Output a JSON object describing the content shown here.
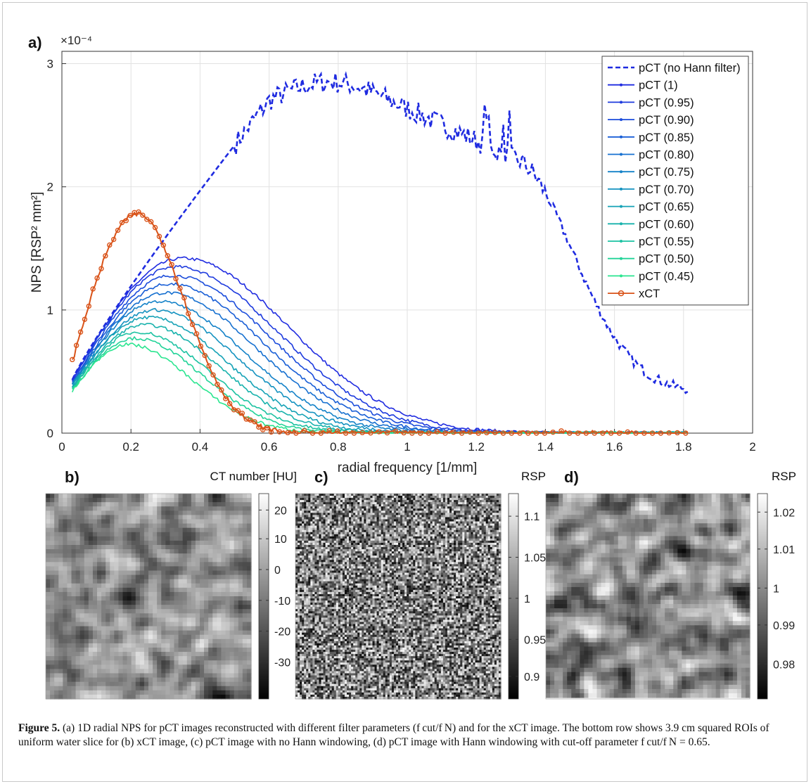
{
  "chart_data": {
    "type": "line",
    "panel_label": "a)",
    "xlabel": "radial frequency [1/mm]",
    "ylabel": "NPS [RSP² mm²]",
    "y_multiplier": "×10⁻⁴",
    "xlim": [
      0,
      2
    ],
    "ylim": [
      0,
      3.1
    ],
    "xticks": [
      "0",
      "0.2",
      "0.4",
      "0.6",
      "0.8",
      "1",
      "1.2",
      "1.4",
      "1.6",
      "1.8",
      "2"
    ],
    "yticks": [
      "0",
      "1",
      "2",
      "3"
    ],
    "grid": true,
    "legend_position": "top-right",
    "series": [
      {
        "name": "pCT (no Hann filter)",
        "color": "#1f2be0",
        "style": "dash",
        "peak_x": 0.75,
        "peak": 2.85,
        "noise": true
      },
      {
        "name": "pCT (1)",
        "color": "#1f2be0",
        "style": "line",
        "peak_x": 0.35,
        "peak": 1.42,
        "y0": 0.43,
        "cutoff": 1.0
      },
      {
        "name": "pCT (0.95)",
        "color": "#1d3ade",
        "style": "line",
        "peak_x": 0.33,
        "peak": 1.35,
        "y0": 0.42,
        "cutoff": 0.95
      },
      {
        "name": "pCT (0.90)",
        "color": "#1b4cdb",
        "style": "line",
        "peak_x": 0.32,
        "peak": 1.28,
        "y0": 0.41,
        "cutoff": 0.9
      },
      {
        "name": "pCT (0.85)",
        "color": "#185ed6",
        "style": "line",
        "peak_x": 0.31,
        "peak": 1.21,
        "y0": 0.4,
        "cutoff": 0.85
      },
      {
        "name": "pCT (0.80)",
        "color": "#1670d0",
        "style": "line",
        "peak_x": 0.3,
        "peak": 1.14,
        "y0": 0.4,
        "cutoff": 0.8
      },
      {
        "name": "pCT (0.75)",
        "color": "#1482c8",
        "style": "line",
        "peak_x": 0.28,
        "peak": 1.07,
        "y0": 0.39,
        "cutoff": 0.75
      },
      {
        "name": "pCT (0.70)",
        "color": "#1492c0",
        "style": "line",
        "peak_x": 0.27,
        "peak": 1.0,
        "y0": 0.38,
        "cutoff": 0.7
      },
      {
        "name": "pCT (0.65)",
        "color": "#16a2b6",
        "style": "line",
        "peak_x": 0.25,
        "peak": 0.94,
        "y0": 0.38,
        "cutoff": 0.65
      },
      {
        "name": "pCT (0.60)",
        "color": "#18b2ac",
        "style": "line",
        "peak_x": 0.24,
        "peak": 0.88,
        "y0": 0.37,
        "cutoff": 0.6
      },
      {
        "name": "pCT (0.55)",
        "color": "#1cc2a2",
        "style": "line",
        "peak_x": 0.22,
        "peak": 0.82,
        "y0": 0.36,
        "cutoff": 0.55
      },
      {
        "name": "pCT (0.50)",
        "color": "#22d398",
        "style": "line",
        "peak_x": 0.21,
        "peak": 0.77,
        "y0": 0.35,
        "cutoff": 0.5
      },
      {
        "name": "pCT (0.45)",
        "color": "#2ae58f",
        "style": "line",
        "peak_x": 0.19,
        "peak": 0.72,
        "y0": 0.34,
        "cutoff": 0.45
      },
      {
        "name": "xCT",
        "color": "#d95319",
        "style": "marker",
        "peak_x": 0.22,
        "peak": 1.78,
        "y0": 0.58
      }
    ]
  },
  "panels": {
    "b": {
      "label": "b)",
      "unit": "CT number [HU]",
      "ticks": [
        "20",
        "10",
        "0",
        "-10",
        "-20",
        "-30"
      ]
    },
    "c": {
      "label": "c)",
      "unit": "RSP",
      "ticks": [
        "1.1",
        "1.05",
        "1",
        "0.95",
        "0.9"
      ]
    },
    "d": {
      "label": "d)",
      "unit": "RSP",
      "ticks": [
        "1.02",
        "1.01",
        "1",
        "0.99",
        "0.98"
      ]
    }
  },
  "caption": {
    "bold": "Figure 5.",
    "text": " (a) 1D radial NPS for pCT images reconstructed with different filter parameters (f cut/f N) and for the xCT image. The bottom row shows 3.9 cm squared ROIs of uniform water slice for (b) xCT image, (c) pCT image with no Hann windowing, (d) pCT image with Hann windowing with cut-off parameter f cut/f N = 0.65."
  }
}
